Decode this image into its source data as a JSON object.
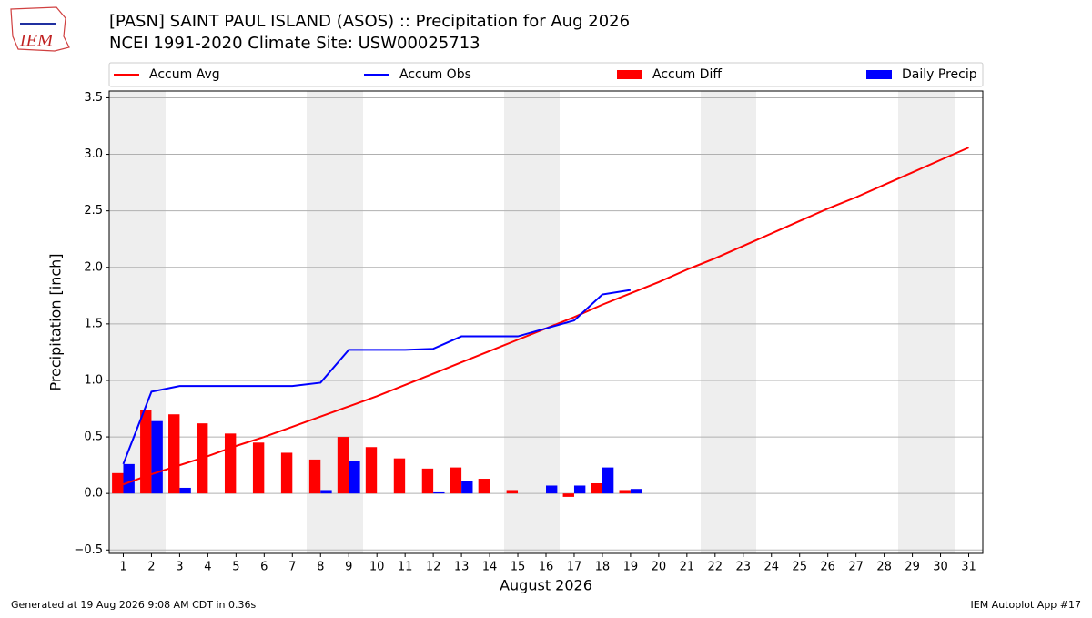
{
  "chart_data": {
    "type": "bar",
    "logo_text": "IEM",
    "title": "[PASN] SAINT PAUL ISLAND (ASOS) :: Precipitation for Aug 2026",
    "subtitle": "NCEI 1991-2020 Climate Site: USW00025713",
    "xlabel": "August 2026",
    "ylabel": "Precipitation [inch]",
    "footer_left": "Generated at 19 Aug 2026 9:08 AM CDT in 0.36s",
    "footer_right": "IEM Autoplot App #17",
    "x": [
      1,
      2,
      3,
      4,
      5,
      6,
      7,
      8,
      9,
      10,
      11,
      12,
      13,
      14,
      15,
      16,
      17,
      18,
      19,
      20,
      21,
      22,
      23,
      24,
      25,
      26,
      27,
      28,
      29,
      30,
      31
    ],
    "xlim": [
      0.5,
      31.5
    ],
    "xticks": [
      1,
      2,
      3,
      4,
      5,
      6,
      7,
      8,
      9,
      10,
      11,
      12,
      13,
      14,
      15,
      16,
      17,
      18,
      19,
      20,
      21,
      22,
      23,
      24,
      25,
      26,
      27,
      28,
      29,
      30,
      31
    ],
    "ylim": [
      -0.53,
      3.56
    ],
    "yticks": [
      {
        "value": -0.5,
        "label": "−0.5"
      },
      {
        "value": 0,
        "label": "0.0"
      },
      0.5,
      {
        "value": 1,
        "label": "1.0"
      },
      1.5,
      {
        "value": 2,
        "label": "2.0"
      },
      2.5,
      {
        "value": 3,
        "label": "3.0"
      },
      3.5
    ],
    "grid": true,
    "series": [
      {
        "name": "Accum Avg",
        "type": "line",
        "color": "#ff0000",
        "values": [
          0.08,
          0.17,
          0.25,
          0.33,
          0.42,
          0.5,
          0.59,
          0.68,
          0.77,
          0.86,
          0.96,
          1.06,
          1.16,
          1.26,
          1.36,
          1.46,
          1.56,
          1.67,
          1.77,
          1.87,
          1.98,
          2.08,
          2.19,
          2.3,
          2.41,
          2.52,
          2.62,
          2.73,
          2.84,
          2.95,
          3.06
        ]
      },
      {
        "name": "Accum Obs",
        "type": "line",
        "color": "#0000ff",
        "values": [
          0.26,
          0.9,
          0.95,
          0.95,
          0.95,
          0.95,
          0.95,
          0.98,
          1.27,
          1.27,
          1.27,
          1.28,
          1.39,
          1.39,
          1.39,
          1.46,
          1.53,
          1.76,
          1.8,
          null,
          null,
          null,
          null,
          null,
          null,
          null,
          null,
          null,
          null,
          null,
          null
        ]
      },
      {
        "name": "Accum Diff",
        "type": "bar",
        "color": "#ff0000",
        "values": [
          0.18,
          0.74,
          0.7,
          0.62,
          0.53,
          0.45,
          0.36,
          0.3,
          0.5,
          0.41,
          0.31,
          0.22,
          0.23,
          0.13,
          0.03,
          0,
          -0.03,
          0.09,
          0.03,
          null,
          null,
          null,
          null,
          null,
          null,
          null,
          null,
          null,
          null,
          null,
          null
        ]
      },
      {
        "name": "Daily Precip",
        "type": "bar",
        "color": "#0000ff",
        "values": [
          0.26,
          0.64,
          0.05,
          0,
          0,
          0,
          0,
          0.03,
          0.29,
          0,
          0,
          0.01,
          0.11,
          0,
          0,
          0.07,
          0.07,
          0.23,
          0.04,
          null,
          null,
          null,
          null,
          null,
          null,
          null,
          null,
          null,
          null,
          null,
          null
        ]
      }
    ]
  }
}
